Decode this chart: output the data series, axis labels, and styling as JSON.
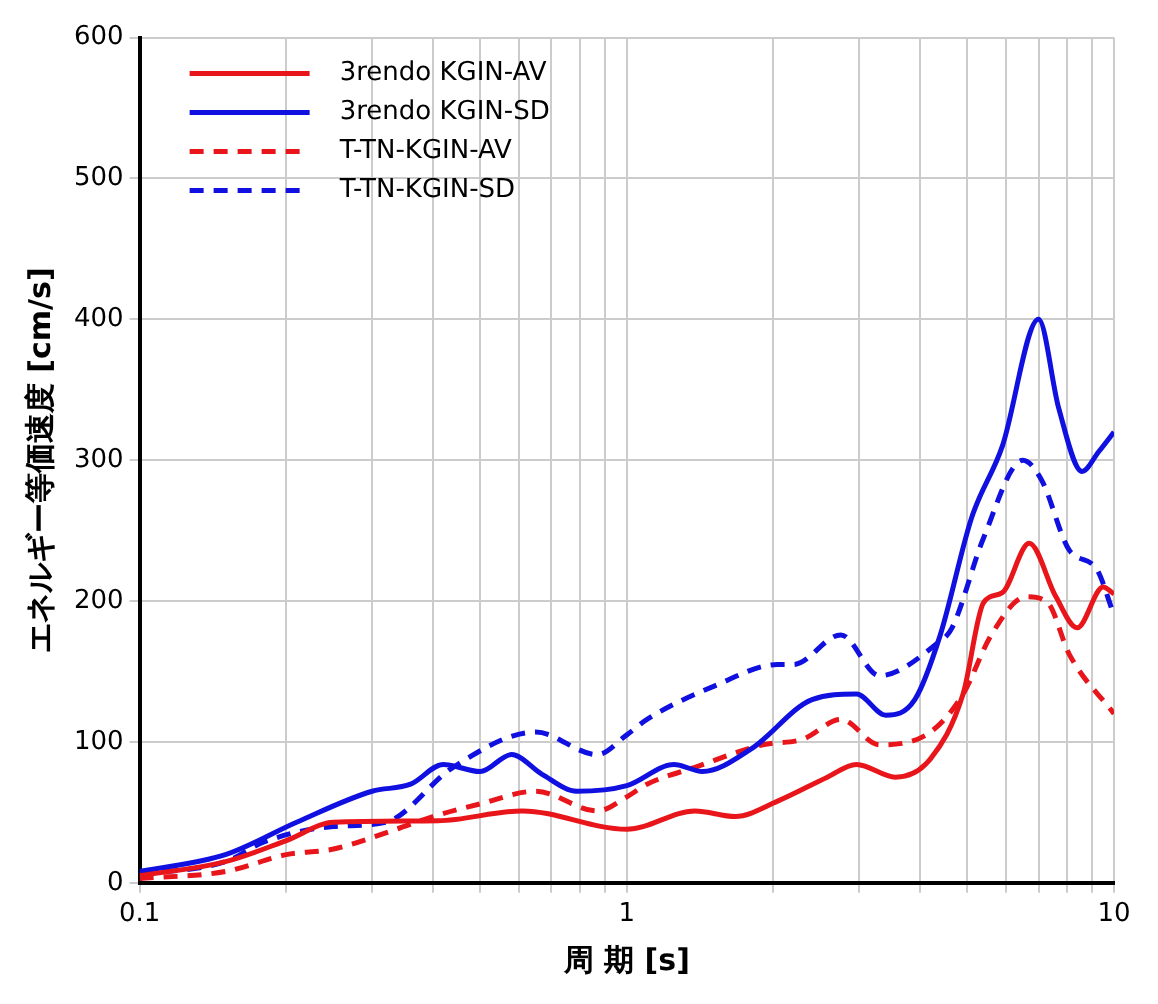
{
  "chart_data": {
    "type": "line",
    "xlabel": "周 期 [s]",
    "ylabel": "エネルギー等価速度 [cm/s]",
    "log": "x",
    "grid": true,
    "legend": "top left",
    "marker": "none",
    "xlim": [
      0.1,
      10
    ],
    "xticks": [
      0.1,
      {
        "value": 0.2,
        "label": null
      },
      {
        "value": 0.3,
        "label": null
      },
      {
        "value": 0.4,
        "label": null
      },
      {
        "value": 0.5,
        "label": null
      },
      {
        "value": 0.6,
        "label": null
      },
      {
        "value": 0.7,
        "label": null
      },
      {
        "value": 0.8,
        "label": null
      },
      {
        "value": 0.9,
        "label": null
      },
      1,
      {
        "value": 2,
        "label": null
      },
      {
        "value": 3,
        "label": null
      },
      {
        "value": 4,
        "label": null
      },
      {
        "value": 5,
        "label": null
      },
      {
        "value": 6,
        "label": null
      },
      {
        "value": 7,
        "label": null
      },
      {
        "value": 8,
        "label": null
      },
      {
        "value": 9,
        "label": null
      },
      10
    ],
    "ylim": [
      0,
      600
    ],
    "yticks": [
      0,
      100,
      200,
      300,
      400,
      500,
      600
    ],
    "series": [
      {
        "name": "3rendo KGIN-AV",
        "color": "#e8151b",
        "line_style": "solid",
        "x": [
          0.1,
          0.15,
          0.2,
          0.25,
          0.41,
          0.61,
          1.0,
          1.38,
          1.67,
          2.04,
          2.58,
          2.96,
          3.56,
          4.2,
          4.9,
          5.4,
          5.9,
          6.7,
          7.6,
          8.4,
          9.5,
          10
        ],
        "values": [
          5,
          15,
          30,
          43,
          44,
          51,
          38,
          51,
          47,
          58,
          75,
          84,
          75,
          88,
          134,
          199,
          206,
          241,
          203,
          181,
          210,
          205
        ]
      },
      {
        "name": "3rendo KGIN-SD",
        "color": "#1010e0",
        "line_style": "solid",
        "x": [
          0.1,
          0.15,
          0.21,
          0.3,
          0.36,
          0.42,
          0.5,
          0.58,
          0.67,
          0.79,
          1.0,
          1.25,
          1.43,
          1.8,
          2.4,
          2.96,
          3.4,
          3.9,
          4.4,
          5.1,
          5.9,
          7.0,
          7.7,
          8.6,
          9.3,
          10
        ],
        "values": [
          8,
          20,
          43,
          65,
          70,
          84,
          79,
          91,
          77,
          65,
          69,
          84,
          79,
          95,
          130,
          134,
          119,
          130,
          176,
          259,
          310,
          400,
          337,
          292,
          306,
          320
        ]
      },
      {
        "name": "T-TN-KGIN-AV",
        "color": "#e8151b",
        "line_style": "dashed",
        "x": [
          0.1,
          0.15,
          0.2,
          0.25,
          0.33,
          0.4,
          0.5,
          0.65,
          0.87,
          1.0,
          1.1,
          1.38,
          1.9,
          2.3,
          2.75,
          3.3,
          4.2,
          4.9,
          5.6,
          6.6,
          7.3,
          8.1,
          10
        ],
        "values": [
          3,
          8,
          20,
          24,
          37,
          47,
          56,
          65,
          51,
          61,
          70,
          82,
          98,
          102,
          116,
          98,
          107,
          134,
          176,
          203,
          199,
          162,
          120
        ]
      },
      {
        "name": "T-TN-KGIN-SD",
        "color": "#1010e0",
        "line_style": "dashed",
        "x": [
          0.1,
          0.15,
          0.18,
          0.25,
          0.32,
          0.44,
          0.65,
          0.87,
          1.0,
          1.1,
          1.52,
          2.04,
          2.2,
          2.75,
          3.3,
          4.3,
          4.65,
          5.4,
          6.5,
          7.1,
          8.1,
          9.2,
          10
        ],
        "values": [
          6,
          15,
          29,
          40,
          43,
          82,
          107,
          91,
          105,
          116,
          140,
          155,
          155,
          176,
          147,
          169,
          181,
          245,
          300,
          286,
          236,
          223,
          190
        ]
      }
    ]
  }
}
